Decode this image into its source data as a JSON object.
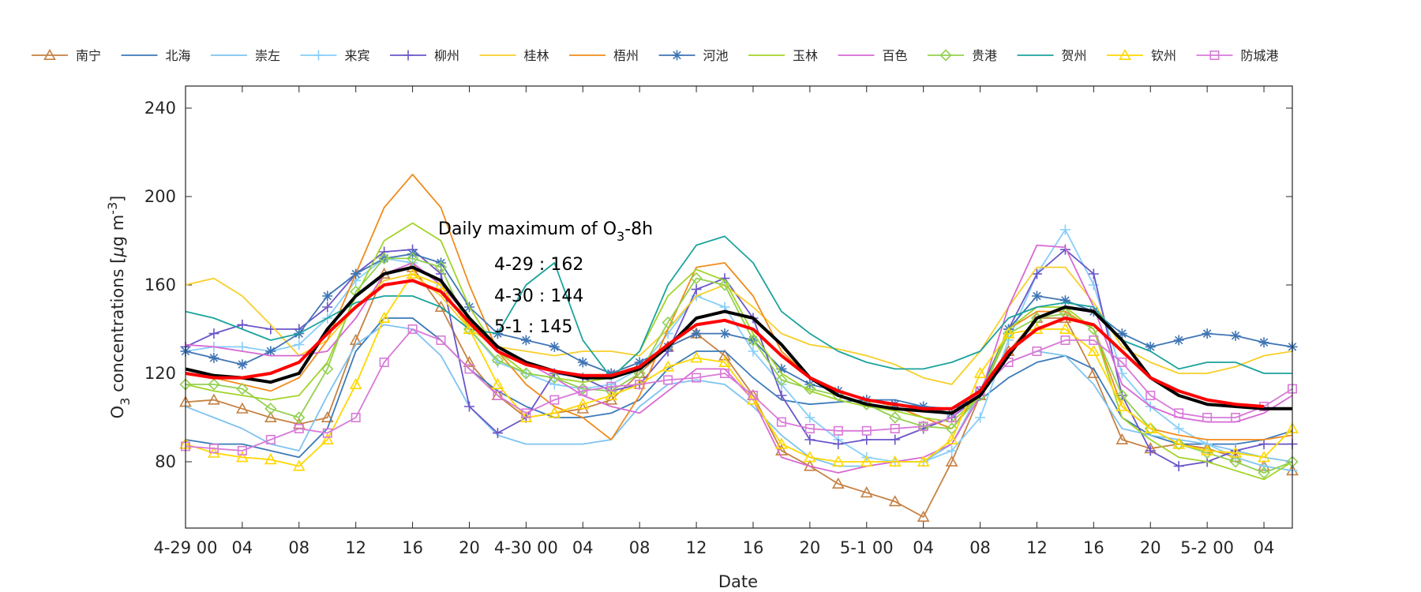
{
  "chart_data": {
    "type": "line",
    "xlabel": "Date",
    "ylabel": "O3 concentrations [μg m-3]",
    "ylabel_parts": {
      "base": "O",
      "sub": "3",
      "mid": " concentrations [",
      "mu": "μ",
      "unit": "g m",
      "sup": "-3",
      "end": "]"
    },
    "hours": [
      0,
      2,
      4,
      6,
      8,
      10,
      12,
      14,
      16,
      18,
      20,
      22,
      24,
      26,
      28,
      30,
      32,
      34,
      36,
      38,
      40,
      42,
      44,
      46,
      48,
      50,
      52,
      54,
      56,
      58,
      60,
      62,
      64,
      66,
      68,
      70,
      72,
      74,
      76,
      78
    ],
    "xlim": [
      0,
      78
    ],
    "ylim": [
      50,
      250
    ],
    "yticks": [
      80,
      120,
      160,
      200,
      240
    ],
    "xticks": [
      {
        "hour": 0,
        "label": "4-29 00"
      },
      {
        "hour": 4,
        "label": "04"
      },
      {
        "hour": 8,
        "label": "08"
      },
      {
        "hour": 12,
        "label": "12"
      },
      {
        "hour": 16,
        "label": "16"
      },
      {
        "hour": 20,
        "label": "20"
      },
      {
        "hour": 24,
        "label": "4-30 00"
      },
      {
        "hour": 28,
        "label": "04"
      },
      {
        "hour": 32,
        "label": "08"
      },
      {
        "hour": 36,
        "label": "12"
      },
      {
        "hour": 40,
        "label": "16"
      },
      {
        "hour": 44,
        "label": "20"
      },
      {
        "hour": 48,
        "label": "5-1 00"
      },
      {
        "hour": 52,
        "label": "04"
      },
      {
        "hour": 56,
        "label": "08"
      },
      {
        "hour": 60,
        "label": "12"
      },
      {
        "hour": 64,
        "label": "16"
      },
      {
        "hour": 68,
        "label": "20"
      },
      {
        "hour": 72,
        "label": "5-2 00"
      },
      {
        "hour": 76,
        "label": "04"
      }
    ],
    "annotations": {
      "title": "Daily maximum of O",
      "title_sub": "3",
      "title_end": "-8h",
      "lines": [
        "4-29 : 162",
        "4-30 : 144",
        "5-1 : 145"
      ]
    },
    "series": [
      {
        "name": "南宁",
        "color": "#C58143",
        "marker": "triangle",
        "values": [
          107,
          108,
          104,
          100,
          97,
          100,
          135,
          165,
          168,
          150,
          125,
          110,
          100,
          102,
          104,
          108,
          120,
          132,
          138,
          128,
          110,
          85,
          78,
          70,
          66,
          62,
          55,
          80,
          110,
          130,
          145,
          145,
          120,
          90,
          86,
          88,
          86,
          82,
          78,
          76
        ]
      },
      {
        "name": "北海",
        "color": "#3C7AB8",
        "marker": "none",
        "values": [
          90,
          88,
          88,
          85,
          82,
          95,
          130,
          145,
          145,
          135,
          122,
          112,
          105,
          100,
          100,
          102,
          108,
          122,
          130,
          130,
          118,
          108,
          106,
          107,
          108,
          108,
          105,
          104,
          108,
          118,
          125,
          128,
          122,
          100,
          92,
          88,
          88,
          88,
          90,
          94
        ]
      },
      {
        "name": "崇左",
        "color": "#7EC3F0",
        "marker": "none",
        "values": [
          105,
          100,
          95,
          88,
          85,
          110,
          133,
          142,
          140,
          128,
          105,
          92,
          88,
          88,
          88,
          90,
          105,
          115,
          117,
          115,
          105,
          92,
          82,
          78,
          78,
          80,
          80,
          88,
          112,
          125,
          130,
          128,
          115,
          95,
          92,
          90,
          88,
          85,
          82,
          80
        ]
      },
      {
        "name": "来宾",
        "color": "#87CEFA",
        "marker": "plus",
        "values": [
          130,
          132,
          132,
          130,
          133,
          145,
          162,
          172,
          170,
          160,
          140,
          125,
          120,
          115,
          113,
          115,
          122,
          138,
          155,
          150,
          130,
          115,
          100,
          90,
          82,
          80,
          80,
          85,
          100,
          135,
          165,
          185,
          160,
          120,
          105,
          95,
          88,
          82,
          78,
          76
        ]
      },
      {
        "name": "柳州",
        "color": "#6A56C8",
        "marker": "plus",
        "values": [
          132,
          138,
          142,
          140,
          140,
          150,
          165,
          175,
          176,
          165,
          105,
          93,
          100,
          120,
          118,
          112,
          115,
          130,
          158,
          163,
          145,
          110,
          90,
          88,
          90,
          90,
          95,
          100,
          110,
          140,
          165,
          176,
          165,
          110,
          85,
          78,
          80,
          85,
          88,
          88
        ]
      },
      {
        "name": "桂林",
        "color": "#F7CF2A",
        "marker": "none",
        "values": [
          160,
          163,
          155,
          142,
          128,
          135,
          150,
          162,
          165,
          155,
          140,
          132,
          130,
          128,
          130,
          130,
          128,
          140,
          155,
          160,
          150,
          138,
          133,
          131,
          128,
          124,
          118,
          115,
          130,
          150,
          168,
          168,
          152,
          132,
          125,
          120,
          120,
          123,
          128,
          130
        ]
      },
      {
        "name": "梧州",
        "color": "#F08C1C",
        "marker": "none",
        "values": [
          120,
          118,
          115,
          112,
          118,
          135,
          165,
          195,
          210,
          195,
          160,
          130,
          115,
          105,
          100,
          90,
          110,
          140,
          168,
          170,
          155,
          130,
          118,
          112,
          108,
          105,
          100,
          95,
          112,
          140,
          148,
          148,
          140,
          105,
          95,
          92,
          90,
          90,
          90,
          92
        ]
      },
      {
        "name": "河池",
        "color": "#3F75B5",
        "marker": "asterisk",
        "values": [
          130,
          127,
          124,
          130,
          138,
          155,
          165,
          172,
          174,
          170,
          150,
          138,
          135,
          132,
          125,
          120,
          125,
          132,
          138,
          138,
          135,
          122,
          115,
          112,
          108,
          106,
          105,
          102,
          112,
          140,
          155,
          153,
          148,
          138,
          132,
          135,
          138,
          137,
          134,
          132
        ]
      },
      {
        "name": "玉林",
        "color": "#A2D429",
        "marker": "none",
        "values": [
          115,
          112,
          110,
          108,
          110,
          125,
          155,
          180,
          188,
          180,
          150,
          130,
          120,
          118,
          116,
          118,
          130,
          155,
          167,
          162,
          138,
          120,
          112,
          108,
          105,
          103,
          100,
          98,
          110,
          140,
          150,
          150,
          140,
          100,
          90,
          82,
          80,
          76,
          72,
          80
        ]
      },
      {
        "name": "百色",
        "color": "#D769D4",
        "marker": "none",
        "values": [
          133,
          132,
          130,
          128,
          128,
          130,
          145,
          165,
          170,
          160,
          145,
          130,
          125,
          118,
          110,
          105,
          102,
          112,
          122,
          122,
          108,
          82,
          78,
          75,
          78,
          80,
          82,
          88,
          110,
          150,
          178,
          177,
          150,
          115,
          105,
          100,
          98,
          98,
          102,
          110
        ]
      },
      {
        "name": "贵港",
        "color": "#92D050",
        "marker": "diamond",
        "values": [
          115,
          115,
          113,
          104,
          100,
          122,
          157,
          172,
          172,
          168,
          140,
          126,
          120,
          118,
          113,
          112,
          120,
          143,
          163,
          160,
          135,
          117,
          113,
          110,
          106,
          100,
          96,
          95,
          110,
          138,
          145,
          147,
          140,
          110,
          95,
          88,
          84,
          80,
          75,
          80
        ]
      },
      {
        "name": "贺州",
        "color": "#1BA39C",
        "marker": "none",
        "values": [
          148,
          145,
          140,
          135,
          138,
          145,
          152,
          155,
          155,
          150,
          140,
          138,
          160,
          170,
          135,
          118,
          130,
          160,
          178,
          182,
          170,
          148,
          138,
          130,
          125,
          122,
          122,
          125,
          130,
          145,
          150,
          152,
          150,
          135,
          130,
          122,
          125,
          125,
          120,
          120
        ]
      },
      {
        "name": "钦州",
        "color": "#FFD700",
        "marker": "triangle",
        "values": [
          88,
          84,
          82,
          81,
          78,
          90,
          115,
          145,
          165,
          160,
          140,
          115,
          100,
          102,
          106,
          110,
          115,
          123,
          127,
          125,
          108,
          88,
          82,
          80,
          80,
          80,
          80,
          90,
          120,
          138,
          140,
          140,
          130,
          105,
          95,
          88,
          85,
          84,
          82,
          95
        ]
      },
      {
        "name": "防城港",
        "color": "#D87AD8",
        "marker": "square",
        "values": [
          87,
          86,
          85,
          90,
          95,
          93,
          100,
          125,
          140,
          135,
          122,
          110,
          102,
          108,
          112,
          114,
          115,
          117,
          118,
          120,
          110,
          98,
          95,
          94,
          94,
          95,
          96,
          100,
          112,
          125,
          130,
          135,
          135,
          125,
          110,
          102,
          100,
          100,
          105,
          113
        ]
      },
      {
        "name": "mean",
        "color": "#000000",
        "marker": "none",
        "legend": false,
        "width": 4,
        "values": [
          122,
          119,
          118,
          116,
          120,
          140,
          155,
          165,
          168,
          162,
          145,
          132,
          125,
          121,
          118,
          118,
          122,
          132,
          145,
          148,
          145,
          133,
          118,
          110,
          106,
          104,
          103,
          102,
          110,
          128,
          145,
          150,
          148,
          135,
          118,
          110,
          106,
          105,
          104,
          104
        ]
      },
      {
        "name": "mean2",
        "color": "#FF0000",
        "marker": "none",
        "legend": false,
        "width": 4,
        "values": [
          120,
          118,
          118,
          120,
          125,
          138,
          150,
          160,
          162,
          157,
          143,
          130,
          124,
          121,
          119,
          119,
          123,
          133,
          142,
          144,
          140,
          128,
          118,
          112,
          108,
          106,
          104,
          104,
          112,
          130,
          140,
          145,
          142,
          130,
          118,
          112,
          108,
          106,
          105,
          null
        ]
      }
    ]
  }
}
